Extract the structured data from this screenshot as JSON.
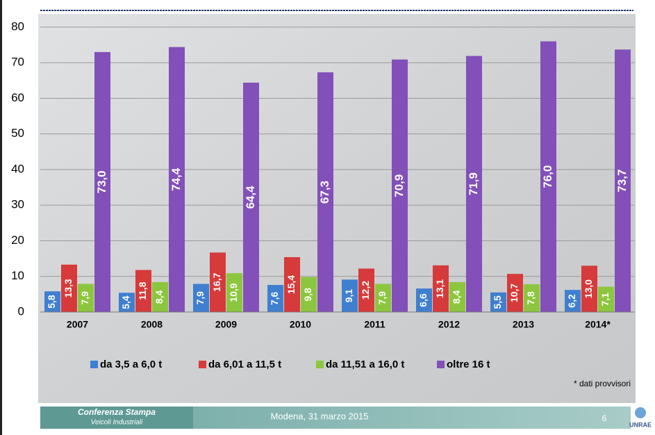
{
  "chart_data": {
    "type": "bar",
    "categories": [
      "2007",
      "2008",
      "2009",
      "2010",
      "2011",
      "2012",
      "2013",
      "2014*"
    ],
    "series": [
      {
        "name": "da 3,5 a 6,0 t",
        "color": "#3f7fd0",
        "values": [
          5.8,
          5.4,
          7.9,
          7.6,
          9.1,
          6.6,
          5.5,
          6.2
        ],
        "value_labels": [
          "5,8",
          "5,4",
          "7,9",
          "7,6",
          "9,1",
          "6,6",
          "5,5",
          "6,2"
        ]
      },
      {
        "name": "da 6,01 a 11,5 t",
        "color": "#d63a3a",
        "values": [
          13.3,
          11.8,
          16.7,
          15.4,
          12.2,
          13.1,
          10.7,
          13.0
        ],
        "value_labels": [
          "13,3",
          "11,8",
          "16,7",
          "15,4",
          "12,2",
          "13,1",
          "10,7",
          "13,0"
        ]
      },
      {
        "name": "da 11,51 a 16,0 t",
        "color": "#8cc63e",
        "values": [
          7.9,
          8.4,
          10.9,
          9.8,
          7.9,
          8.4,
          7.8,
          7.1
        ],
        "value_labels": [
          "7,9",
          "8,4",
          "10,9",
          "9,8",
          "7,9",
          "8,4",
          "7,8",
          "7,1"
        ]
      },
      {
        "name": "oltre 16 t",
        "color": "#8250b8",
        "values": [
          73.0,
          74.4,
          64.4,
          67.3,
          70.9,
          71.9,
          76.0,
          73.7
        ],
        "value_labels": [
          "73,0",
          "74,4",
          "64,4",
          "67,3",
          "70,9",
          "71,9",
          "76,0",
          "73,7"
        ]
      }
    ],
    "ylim": [
      0,
      80
    ],
    "yticks": [
      0,
      10,
      20,
      30,
      40,
      50,
      60,
      70,
      80
    ],
    "grid": true,
    "legend": "bottom",
    "note": "* dati provvisori"
  },
  "footer": {
    "event": "Conferenza Stampa",
    "subtitle": "Veicoli Industriali",
    "place_date": "Modena, 31 marzo 2015",
    "page": "6",
    "logo": "UNRAE"
  }
}
